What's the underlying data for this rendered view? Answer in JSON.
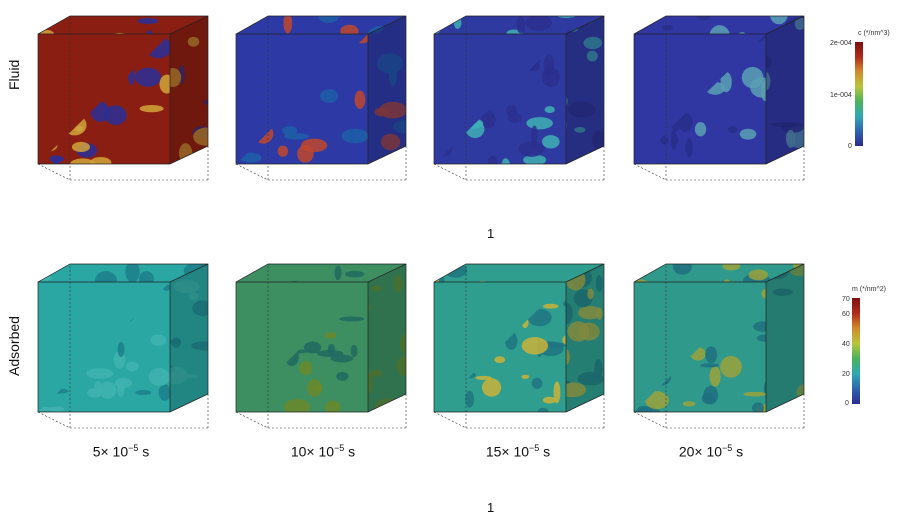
{
  "rows": [
    {
      "label": "Fluid",
      "colorbar": {
        "title": "c (*/nm^3)",
        "ticks": [
          "2e-004",
          "1e-004",
          "0"
        ]
      },
      "panels": [
        {
          "id": "fluid-1",
          "base_color": "#8a1e12",
          "pattern_color": "#d0a43a",
          "dark_color": "#2a2f9a"
        },
        {
          "id": "fluid-2",
          "base_color": "#2d3aa5",
          "pattern_color": "#c0482c",
          "dark_color": "#1d5fa8"
        },
        {
          "id": "fluid-3",
          "base_color": "#2f3aa0",
          "pattern_color": "#3fb0b5",
          "dark_color": "#2a2f8e"
        },
        {
          "id": "fluid-4",
          "base_color": "#3037a2",
          "pattern_color": "#5aa0b4",
          "dark_color": "#282e8a"
        }
      ],
      "footer": "1"
    },
    {
      "label": "Adsorbed",
      "colorbar": {
        "title": "m (*/nm^2)",
        "ticks": [
          "70",
          "60",
          "40",
          "20",
          "0"
        ]
      },
      "panels": [
        {
          "id": "ads-1",
          "base_color": "#2aa7a3",
          "pattern_color": "#3fb3b0",
          "dark_color": "#1c7e8a",
          "time": "5× 10",
          "exp": "−5",
          "unit": " s"
        },
        {
          "id": "ads-2",
          "base_color": "#3d8f62",
          "pattern_color": "#6a8a2c",
          "dark_color": "#216a62",
          "time": "10× 10",
          "exp": "−5",
          "unit": " s"
        },
        {
          "id": "ads-3",
          "base_color": "#2f9e8f",
          "pattern_color": "#c9b13a",
          "dark_color": "#1f7481",
          "time": "15× 10",
          "exp": "−5",
          "unit": " s"
        },
        {
          "id": "ads-4",
          "base_color": "#2f9a8c",
          "pattern_color": "#9aa23b",
          "dark_color": "#1f7080",
          "time": "20× 10",
          "exp": "−5",
          "unit": " s"
        }
      ],
      "footer": "1"
    }
  ],
  "colormap": [
    "#2b2b8e",
    "#2f63b0",
    "#2fa9b3",
    "#49b35a",
    "#b6c53a",
    "#d28a2c",
    "#b02a1c",
    "#7c1010"
  ]
}
